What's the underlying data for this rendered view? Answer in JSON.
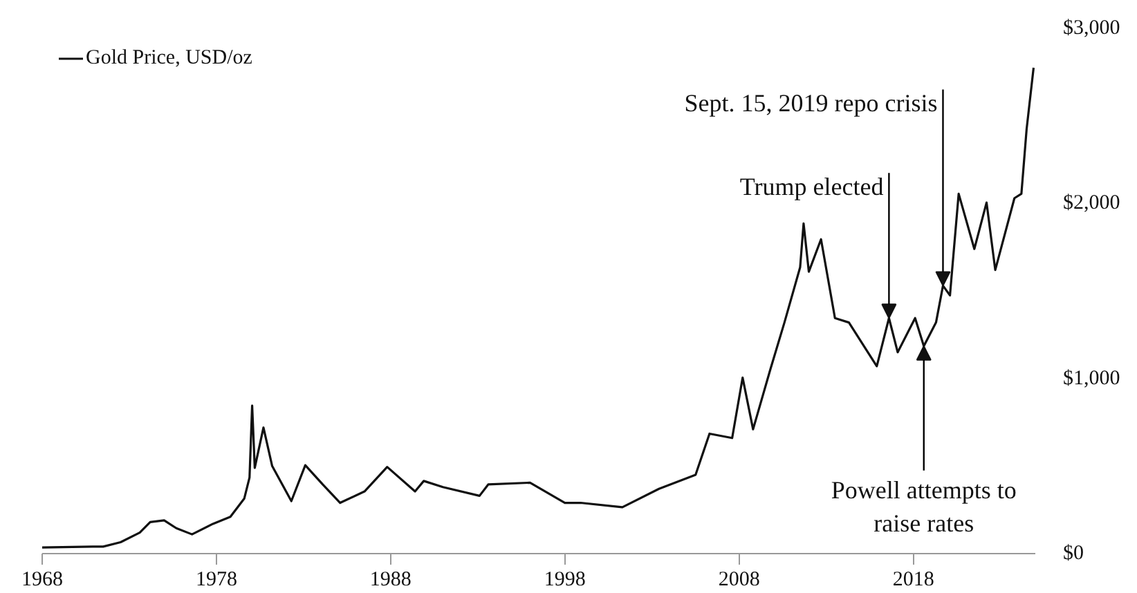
{
  "chart_data": {
    "type": "line",
    "x": [
      1968,
      1970.9,
      1971.5,
      1972.5,
      1973.6,
      1974.2,
      1975,
      1975.7,
      1976.6,
      1977.8,
      1978.8,
      1979.6,
      1979.9,
      1980.05,
      1980.2,
      1980.7,
      1981.2,
      1982.3,
      1983.1,
      1984.1,
      1985.1,
      1986.5,
      1987.8,
      1989.4,
      1989.9,
      1991,
      1993.1,
      1993.6,
      1996,
      1998,
      1998.9,
      2001.3,
      2003.4,
      2005.5,
      2006.3,
      2007.6,
      2008.2,
      2008.8,
      2009.8,
      2010.6,
      2011.5,
      2011.7,
      2012,
      2012.7,
      2013.5,
      2014.3,
      2015.9,
      2016.6,
      2017.1,
      2018.1,
      2018.6,
      2019.3,
      2019.7,
      2020.1,
      2020.6,
      2021.5,
      2022.2,
      2022.7,
      2023.8,
      2024.2,
      2024.5,
      2024.9
    ],
    "series": [
      {
        "name": "Gold Price, USD/oz",
        "color": "#111111",
        "values": [
          35,
          40,
          40,
          65,
          120,
          180,
          190,
          145,
          110,
          170,
          210,
          315,
          435,
          845,
          490,
          720,
          500,
          300,
          505,
          395,
          290,
          355,
          495,
          355,
          415,
          380,
          330,
          395,
          405,
          290,
          290,
          265,
          370,
          450,
          685,
          660,
          1005,
          710,
          1055,
          1320,
          1635,
          1885,
          1610,
          1795,
          1345,
          1320,
          1070,
          1345,
          1150,
          1345,
          1185,
          1320,
          1530,
          1475,
          2055,
          1740,
          2005,
          1620,
          2030,
          2055,
          2425,
          2775
        ]
      }
    ],
    "xlim": [
      1968,
      2025
    ],
    "xticks": [
      1968,
      1978,
      1988,
      1998,
      2008,
      2018
    ],
    "ylim": [
      0,
      3000
    ],
    "yticks": [
      {
        "value": 0,
        "label": "$0"
      },
      {
        "value": 1000,
        "label": "$1,000"
      },
      {
        "value": 2000,
        "label": "$2,000"
      },
      {
        "value": 3000,
        "label": "$3,000"
      }
    ],
    "legend": "top left",
    "grid": false,
    "annotations": [
      {
        "text": "Sept. 15, 2019 repo crisis",
        "x": 2019.7,
        "y": 1530
      },
      {
        "text": "Trump elected",
        "x": 2016.6,
        "y": 1345
      },
      {
        "text": "Powell attempts to raise rates",
        "x": 2018.6,
        "y": 1185
      }
    ]
  }
}
